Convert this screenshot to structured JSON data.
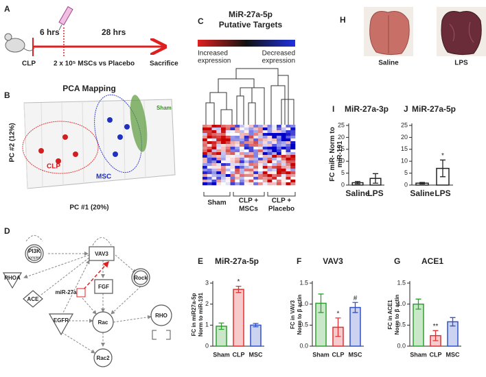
{
  "panel_a": {
    "letter": "A",
    "label_6hrs": "6 hrs",
    "label_28hrs": "28 hrs",
    "start": "CLP",
    "treatment": "2 x 10⁵ MSCs vs Placebo",
    "end": "Sacrifice"
  },
  "panel_b": {
    "letter": "B",
    "title": "PCA Mapping",
    "ylabel": "PC #2 (12%)",
    "xlabel": "PC #1 (20%)",
    "groups": [
      "CLP",
      "MSC",
      "Sham"
    ]
  },
  "panel_c": {
    "letter": "C",
    "title": [
      "MiR-27a-5p",
      "Putative Targets"
    ],
    "legend_low": [
      "Increased",
      "expression"
    ],
    "legend_high": [
      "Decreased",
      "expression"
    ],
    "groups": [
      [
        "Sham"
      ],
      [
        "CLP +",
        "MSCs"
      ],
      [
        "CLP +",
        "Placebo"
      ]
    ]
  },
  "panel_d": {
    "letter": "D",
    "nodes": [
      "PI3K",
      "RHOA",
      "ACE",
      "miR-27a",
      "VAV3",
      "FGF",
      "Rock",
      "Rac",
      "RHO",
      "EGFR",
      "Rac2"
    ],
    "sublabel": "complex"
  },
  "panel_h": {
    "letter": "H",
    "images": [
      "Saline",
      "LPS"
    ]
  },
  "shared_ylabel_ij": [
    "FC miR- Norm to",
    "miR-191"
  ],
  "chart_data": [
    {
      "type": "bar",
      "panel": "E",
      "title": "MiR-27a-5p",
      "ylabel": [
        "FC in miR27a-5p",
        "Norm to miR-191"
      ],
      "categories": [
        "Sham",
        "CLP",
        "MSC"
      ],
      "values": [
        0.95,
        2.7,
        1.0
      ],
      "errors": [
        0.15,
        0.15,
        0.08
      ],
      "colors": [
        "#2ca02c",
        "#e03030",
        "#3050c8"
      ],
      "ylim": [
        0,
        3
      ],
      "yticks": [
        0,
        1,
        2,
        3
      ],
      "annotations": [
        {
          "category": "CLP",
          "text": "*"
        }
      ]
    },
    {
      "type": "bar",
      "panel": "F",
      "title": "VAV3",
      "ylabel": [
        "FC in VAV3",
        "Norm to β actin"
      ],
      "categories": [
        "Sham",
        "CLP",
        "MSC"
      ],
      "values": [
        1.02,
        0.45,
        0.92
      ],
      "errors": [
        0.22,
        0.22,
        0.12
      ],
      "colors": [
        "#2ca02c",
        "#e03030",
        "#3050c8"
      ],
      "ylim": [
        0,
        1.5
      ],
      "yticks": [
        {
          "value": 0,
          "label": "0.0"
        },
        {
          "value": 0.5,
          "label": "0.5"
        },
        {
          "value": 1,
          "label": "1.0"
        },
        {
          "value": 1.5,
          "label": "1.5"
        }
      ],
      "annotations": [
        {
          "category": "CLP",
          "text": "*"
        },
        {
          "category": "MSC",
          "text": "#"
        }
      ]
    },
    {
      "type": "bar",
      "panel": "G",
      "title": "ACE1",
      "ylabel": [
        "FC in ACE1",
        "Norm to β actin"
      ],
      "categories": [
        "Sham",
        "CLP",
        "MSC"
      ],
      "values": [
        1.0,
        0.25,
        0.58
      ],
      "errors": [
        0.12,
        0.12,
        0.1
      ],
      "colors": [
        "#2ca02c",
        "#e03030",
        "#3050c8"
      ],
      "ylim": [
        0,
        1.5
      ],
      "yticks": [
        {
          "value": 0,
          "label": "0.0"
        },
        {
          "value": 0.5,
          "label": "0.5"
        },
        {
          "value": 1,
          "label": "1.0"
        },
        {
          "value": 1.5,
          "label": "1.5"
        }
      ],
      "annotations": [
        {
          "category": "CLP",
          "text": "**"
        }
      ]
    },
    {
      "type": "bar",
      "panel": "I",
      "title": "MiR-27a-3p",
      "categories": [
        "Saline",
        "LPS"
      ],
      "values": [
        1.0,
        2.8
      ],
      "errors": [
        0.5,
        2.0
      ],
      "colors": [
        "#222222",
        "#222222"
      ],
      "ylim": [
        0,
        25
      ],
      "yticks": [
        0,
        5,
        10,
        15,
        20,
        25
      ]
    },
    {
      "type": "bar",
      "panel": "J",
      "title": "MiR-27a-5p",
      "categories": [
        "Saline",
        "LPS"
      ],
      "values": [
        0.8,
        7.0
      ],
      "errors": [
        0.3,
        3.5
      ],
      "colors": [
        "#222222",
        "#222222"
      ],
      "ylim": [
        0,
        25
      ],
      "yticks": [
        0,
        5,
        10,
        15,
        20,
        25
      ],
      "annotations": [
        {
          "category": "LPS",
          "text": "*"
        }
      ]
    }
  ]
}
